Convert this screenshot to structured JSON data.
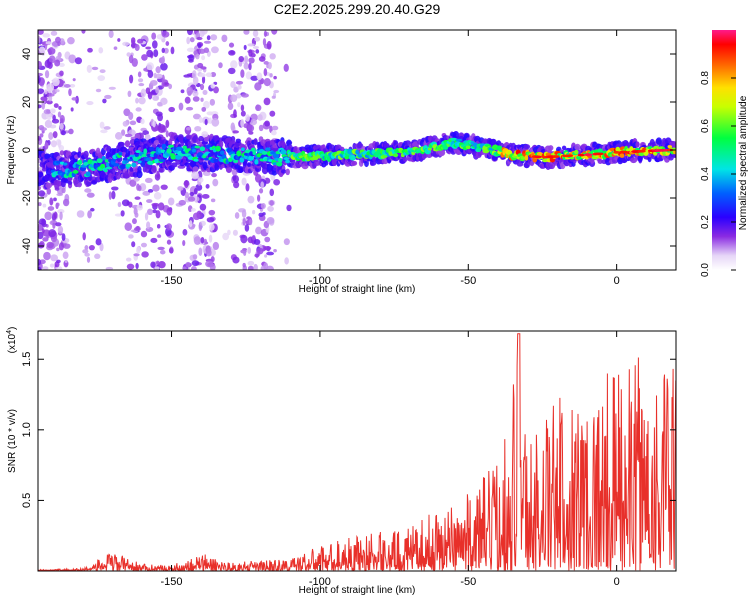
{
  "title": "C2E2.2025.299.20.40.G29",
  "chart_data": [
    {
      "type": "heatmap",
      "xlabel": "Height of straight line (km)",
      "ylabel": "Frequency (Hz)",
      "xlim": [
        -195,
        20
      ],
      "ylim": [
        -50,
        50
      ],
      "xticks": [
        -150,
        -100,
        -50,
        0
      ],
      "yticks": [
        -40,
        -20,
        0,
        20,
        40
      ],
      "colorbar": {
        "label": "Normalized spectral amplitude",
        "range": [
          0,
          1
        ],
        "ticks": [
          0.0,
          0.2,
          0.4,
          0.6,
          0.8
        ],
        "colormap": "rainbow (white-violet-blue-cyan-green-yellow-red-magenta)"
      },
      "ridge_center_hz": [
        {
          "x": -180,
          "y": -8
        },
        {
          "x": -170,
          "y": -5
        },
        {
          "x": -160,
          "y": -3
        },
        {
          "x": -150,
          "y": -1
        },
        {
          "x": -130,
          "y": -2
        },
        {
          "x": -110,
          "y": -3
        },
        {
          "x": -90,
          "y": -2
        },
        {
          "x": -70,
          "y": -1
        },
        {
          "x": -55,
          "y": 3
        },
        {
          "x": -45,
          "y": 1
        },
        {
          "x": -35,
          "y": -2
        },
        {
          "x": -25,
          "y": -3
        },
        {
          "x": -10,
          "y": -2
        },
        {
          "x": 0,
          "y": -1
        },
        {
          "x": 18,
          "y": 0
        }
      ]
    },
    {
      "type": "line",
      "xlabel": "Height of straight line (km)",
      "ylabel": "SNR (10 * v/v)",
      "yscale_label": "(x10",
      "yscale_exp": "4",
      "xlim": [
        -195,
        20
      ],
      "ylim": [
        0,
        1.7
      ],
      "xticks": [
        -150,
        -100,
        -50,
        0
      ],
      "yticks": [
        0.5,
        1.0,
        1.5
      ],
      "ytick_labels": [
        "0.5",
        "1.0",
        "1.5"
      ],
      "envelope": [
        {
          "x": -195,
          "y": 0.01
        },
        {
          "x": -180,
          "y": 0.02
        },
        {
          "x": -170,
          "y": 0.14
        },
        {
          "x": -160,
          "y": 0.05
        },
        {
          "x": -150,
          "y": 0.04
        },
        {
          "x": -140,
          "y": 0.13
        },
        {
          "x": -130,
          "y": 0.06
        },
        {
          "x": -110,
          "y": 0.09
        },
        {
          "x": -100,
          "y": 0.18
        },
        {
          "x": -90,
          "y": 0.25
        },
        {
          "x": -80,
          "y": 0.28
        },
        {
          "x": -70,
          "y": 0.3
        },
        {
          "x": -60,
          "y": 0.45
        },
        {
          "x": -50,
          "y": 0.55
        },
        {
          "x": -40,
          "y": 0.8
        },
        {
          "x": -33,
          "y": 1.68
        },
        {
          "x": -30,
          "y": 0.95
        },
        {
          "x": -20,
          "y": 1.25
        },
        {
          "x": -10,
          "y": 1.3
        },
        {
          "x": 0,
          "y": 1.45
        },
        {
          "x": 10,
          "y": 1.55
        },
        {
          "x": 18,
          "y": 1.45
        }
      ],
      "color": "#e8302a"
    }
  ]
}
